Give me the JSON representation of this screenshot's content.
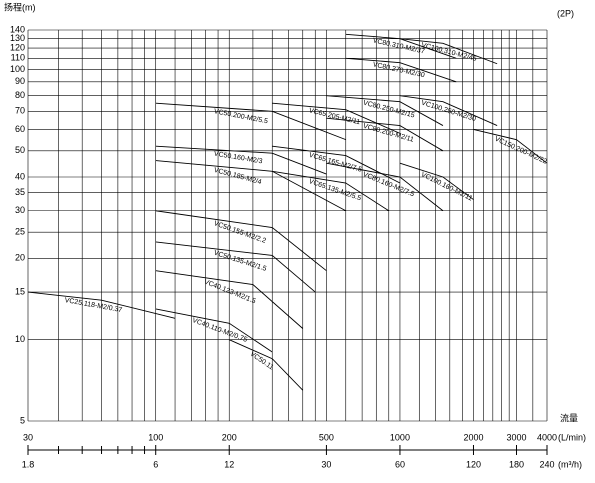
{
  "chart_data": {
    "type": "line",
    "title": "扬程(m)",
    "subtitle": "(2P)",
    "x_label": "流量",
    "x_unit": "(L/min)",
    "x2_unit": "(m³/h)",
    "log_x": true,
    "log_y": true,
    "grid": true,
    "color": "#000000",
    "xlim": [
      30,
      4000
    ],
    "xticks": [
      30,
      100,
      200,
      500,
      1000,
      2000,
      3000,
      4000
    ],
    "xminor": [
      40,
      50,
      60,
      70,
      80,
      90
    ],
    "x2lim": [
      1.8,
      240
    ],
    "x2ticks": [
      1.8,
      6,
      12,
      30,
      60,
      120,
      180,
      240
    ],
    "xgrid": [
      30,
      40,
      50,
      60,
      70,
      80,
      90,
      100,
      120,
      140,
      160,
      180,
      200,
      250,
      300,
      350,
      400,
      450,
      500,
      600,
      700,
      800,
      900,
      1000,
      1200,
      1400,
      1600,
      1800,
      2000,
      2200,
      2400,
      2600,
      2800,
      3000,
      3500,
      4000
    ],
    "ylim": [
      5,
      140
    ],
    "yticks": [
      5,
      10,
      15,
      20,
      25,
      30,
      35,
      40,
      50,
      60,
      70,
      80,
      90,
      100,
      110,
      120,
      130,
      140
    ],
    "series": [
      {
        "name": "VC25.118-M2/0.37",
        "x": [
          30,
          60,
          120
        ],
        "values": [
          15,
          14,
          12
        ]
      },
      {
        "name": "VC40.110-M2/0.75",
        "x": [
          100,
          200,
          300
        ],
        "values": [
          13,
          11.5,
          9
        ]
      },
      {
        "name": "VC50.11",
        "x": [
          200,
          300,
          400
        ],
        "values": [
          10,
          8.5,
          6.5
        ]
      },
      {
        "name": "VC40.123-M2/1.5",
        "x": [
          100,
          250,
          400
        ],
        "values": [
          18,
          16,
          11
        ]
      },
      {
        "name": "VC50.135-M2/1.5",
        "x": [
          100,
          300,
          450
        ],
        "values": [
          23,
          20.5,
          15
        ]
      },
      {
        "name": "VC50.155-M2/2.2",
        "x": [
          100,
          300,
          500
        ],
        "values": [
          30,
          26,
          18
        ]
      },
      {
        "name": "VC50.185-M2/4",
        "x": [
          100,
          300,
          600
        ],
        "values": [
          46,
          42,
          30
        ]
      },
      {
        "name": "VC50.160-M2/3",
        "x": [
          100,
          300,
          500
        ],
        "values": [
          52,
          49,
          41
        ]
      },
      {
        "name": "VC50.200-M2/5.5",
        "x": [
          100,
          300,
          600
        ],
        "values": [
          75,
          70,
          55
        ]
      },
      {
        "name": "VC65.135-M2/5.5",
        "x": [
          300,
          600,
          900
        ],
        "values": [
          42,
          38,
          30
        ]
      },
      {
        "name": "VC65.165-M2/7.5",
        "x": [
          300,
          600,
          1000
        ],
        "values": [
          52,
          48,
          38
        ]
      },
      {
        "name": "VC65.205-M2/11",
        "x": [
          300,
          600,
          1000
        ],
        "values": [
          75,
          71,
          58
        ]
      },
      {
        "name": "VC80.160-M2/7.5",
        "x": [
          500,
          1000,
          1500
        ],
        "values": [
          45,
          40,
          30
        ]
      },
      {
        "name": "VC80.200-M2/11",
        "x": [
          500,
          1000,
          1500
        ],
        "values": [
          66,
          62,
          50
        ]
      },
      {
        "name": "VC80.250-M2/15",
        "x": [
          500,
          1000,
          1500
        ],
        "values": [
          80,
          76,
          62
        ]
      },
      {
        "name": "VC80.270-M2/30",
        "x": [
          600,
          1000,
          1700
        ],
        "values": [
          110,
          106,
          90
        ]
      },
      {
        "name": "VC80.310-M2/37",
        "x": [
          600,
          1000,
          1700
        ],
        "values": [
          135,
          130,
          110
        ]
      },
      {
        "name": "VC100.310-M2/45",
        "x": [
          1000,
          1500,
          2500
        ],
        "values": [
          130,
          125,
          105
        ]
      },
      {
        "name": "VC100.250-M2/30",
        "x": [
          1000,
          1500,
          2500
        ],
        "values": [
          80,
          76,
          62
        ]
      },
      {
        "name": "VC100.160-M2/11",
        "x": [
          1000,
          1500,
          2000
        ],
        "values": [
          45,
          40,
          33
        ]
      },
      {
        "name": "VC150.200-M2/22",
        "x": [
          2000,
          3000,
          4000
        ],
        "values": [
          60,
          55,
          45
        ]
      }
    ]
  }
}
